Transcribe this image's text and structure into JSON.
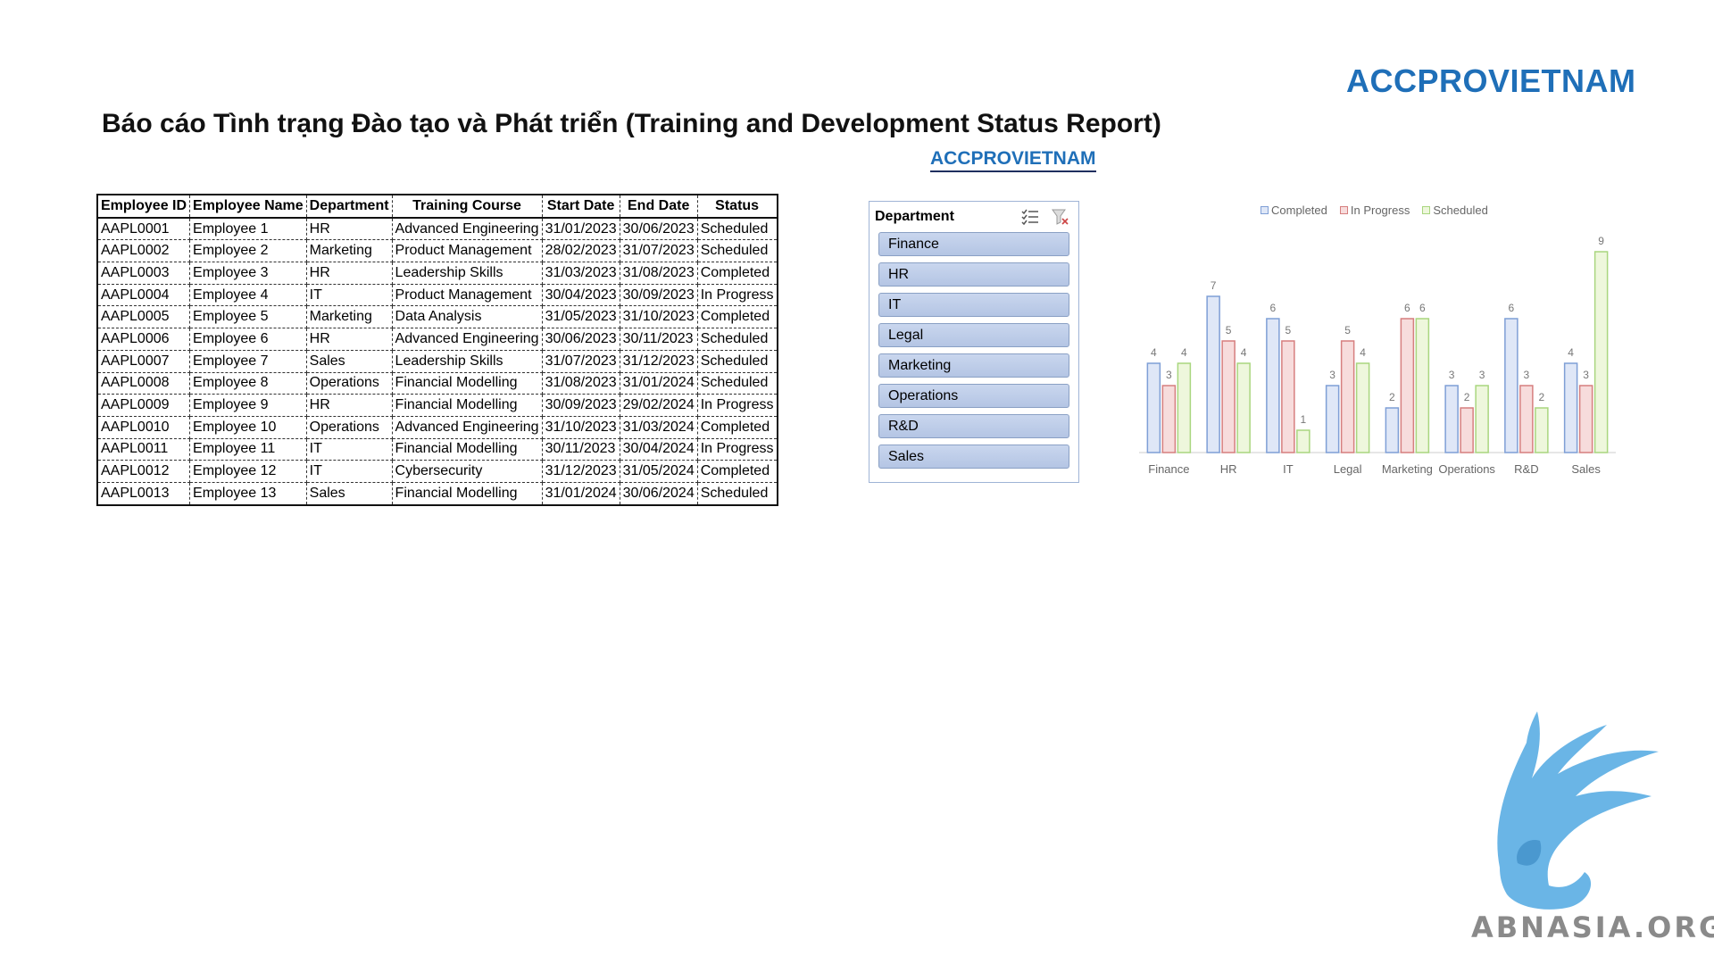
{
  "brand": "ACCPROVIETNAM",
  "title": "Báo cáo Tình trạng Đào tạo và Phát triển (Training and Development Status Report)",
  "brand_sub": "ACCPROVIETNAM",
  "table": {
    "headers": [
      "Employee ID",
      "Employee Name",
      "Department",
      "Training Course",
      "Start Date",
      "End Date",
      "Status"
    ],
    "rows": [
      [
        "AAPL0001",
        "Employee 1",
        "HR",
        "Advanced Engineering",
        "31/01/2023",
        "30/06/2023",
        "Scheduled"
      ],
      [
        "AAPL0002",
        "Employee 2",
        "Marketing",
        "Product Management",
        "28/02/2023",
        "31/07/2023",
        "Scheduled"
      ],
      [
        "AAPL0003",
        "Employee 3",
        "HR",
        "Leadership Skills",
        "31/03/2023",
        "31/08/2023",
        "Completed"
      ],
      [
        "AAPL0004",
        "Employee 4",
        "IT",
        "Product Management",
        "30/04/2023",
        "30/09/2023",
        "In Progress"
      ],
      [
        "AAPL0005",
        "Employee 5",
        "Marketing",
        "Data Analysis",
        "31/05/2023",
        "31/10/2023",
        "Completed"
      ],
      [
        "AAPL0006",
        "Employee 6",
        "HR",
        "Advanced Engineering",
        "30/06/2023",
        "30/11/2023",
        "Scheduled"
      ],
      [
        "AAPL0007",
        "Employee 7",
        "Sales",
        "Leadership Skills",
        "31/07/2023",
        "31/12/2023",
        "Scheduled"
      ],
      [
        "AAPL0008",
        "Employee 8",
        "Operations",
        "Financial Modelling",
        "31/08/2023",
        "31/01/2024",
        "Scheduled"
      ],
      [
        "AAPL0009",
        "Employee 9",
        "HR",
        "Financial Modelling",
        "30/09/2023",
        "29/02/2024",
        "In Progress"
      ],
      [
        "AAPL0010",
        "Employee 10",
        "Operations",
        "Advanced Engineering",
        "31/10/2023",
        "31/03/2024",
        "Completed"
      ],
      [
        "AAPL0011",
        "Employee 11",
        "IT",
        "Financial Modelling",
        "30/11/2023",
        "30/04/2024",
        "In Progress"
      ],
      [
        "AAPL0012",
        "Employee 12",
        "IT",
        "Cybersecurity",
        "31/12/2023",
        "31/05/2024",
        "Completed"
      ],
      [
        "AAPL0013",
        "Employee 13",
        "Sales",
        "Financial Modelling",
        "31/01/2024",
        "30/06/2024",
        "Scheduled"
      ]
    ]
  },
  "slicer": {
    "title": "Department",
    "icons": [
      "multi-select-icon",
      "clear-filter-icon"
    ],
    "items": [
      "Finance",
      "HR",
      "IT",
      "Legal",
      "Marketing",
      "Operations",
      "R&D",
      "Sales"
    ]
  },
  "chart_data": {
    "type": "bar",
    "categories": [
      "Finance",
      "HR",
      "IT",
      "Legal",
      "Marketing",
      "Operations",
      "R&D",
      "Sales"
    ],
    "series": [
      {
        "name": "Completed",
        "values": [
          4,
          7,
          6,
          3,
          2,
          3,
          6,
          4
        ],
        "color": "#dfe7f7",
        "stroke": "#7f9fd6"
      },
      {
        "name": "In Progress",
        "values": [
          3,
          5,
          5,
          5,
          6,
          2,
          3,
          3
        ],
        "color": "#f7dcdc",
        "stroke": "#d67f7f"
      },
      {
        "name": "Scheduled",
        "values": [
          4,
          4,
          1,
          4,
          6,
          3,
          2,
          9
        ],
        "color": "#eef7dc",
        "stroke": "#a9d67f"
      }
    ],
    "ylim": [
      0,
      9
    ],
    "grid": false,
    "legend_position": "top"
  },
  "watermark": "ABNASIA.ORG"
}
